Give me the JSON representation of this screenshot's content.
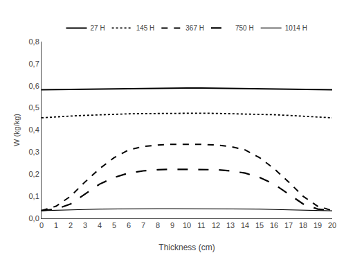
{
  "chart_data": {
    "type": "line",
    "xlabel": "Thickness (cm)",
    "ylabel": "W (kg/kg)",
    "x": [
      0,
      1,
      2,
      3,
      4,
      5,
      6,
      7,
      8,
      9,
      10,
      11,
      12,
      13,
      14,
      15,
      16,
      17,
      18,
      19,
      20
    ],
    "xlim": [
      0,
      20
    ],
    "xticks": [
      0,
      1,
      2,
      3,
      4,
      5,
      6,
      7,
      8,
      9,
      10,
      11,
      12,
      13,
      14,
      15,
      16,
      17,
      18,
      19,
      20
    ],
    "ylim": [
      0.0,
      0.8
    ],
    "yticks": [
      {
        "value": 0.0,
        "label": "0,0"
      },
      {
        "value": 0.1,
        "label": "0,1"
      },
      {
        "value": 0.2,
        "label": "0,2"
      },
      {
        "value": 0.3,
        "label": "0,3"
      },
      {
        "value": 0.4,
        "label": "0,4"
      },
      {
        "value": 0.5,
        "label": "0,5"
      },
      {
        "value": 0.6,
        "label": "0,6"
      },
      {
        "value": 0.7,
        "label": "0,7"
      },
      {
        "value": 0.8,
        "label": "0,8"
      }
    ],
    "grid": false,
    "legend": "upper center",
    "series": [
      {
        "name": "27 H",
        "color": "#000000",
        "line_style": "solid",
        "values": [
          0.582,
          0.583,
          0.584,
          0.585,
          0.586,
          0.587,
          0.588,
          0.589,
          0.589,
          0.59,
          0.59,
          0.59,
          0.589,
          0.589,
          0.588,
          0.587,
          0.586,
          0.585,
          0.584,
          0.583,
          0.582
        ]
      },
      {
        "name": "145 H",
        "color": "#000000",
        "line_style": "dotted",
        "values": [
          0.455,
          0.46,
          0.463,
          0.466,
          0.469,
          0.471,
          0.473,
          0.474,
          0.475,
          0.476,
          0.476,
          0.476,
          0.475,
          0.474,
          0.473,
          0.471,
          0.469,
          0.466,
          0.463,
          0.46,
          0.455
        ]
      },
      {
        "name": "367 H",
        "color": "#000000",
        "line_style": "dashed",
        "values": [
          0.035,
          0.055,
          0.1,
          0.165,
          0.225,
          0.275,
          0.31,
          0.325,
          0.332,
          0.335,
          0.335,
          0.335,
          0.332,
          0.325,
          0.31,
          0.275,
          0.225,
          0.165,
          0.1,
          0.055,
          0.035
        ]
      },
      {
        "name": "750 H",
        "color": "#000000",
        "line_style": "longdashed",
        "values": [
          0.035,
          0.042,
          0.065,
          0.11,
          0.155,
          0.185,
          0.205,
          0.215,
          0.22,
          0.222,
          0.222,
          0.222,
          0.22,
          0.215,
          0.205,
          0.185,
          0.155,
          0.11,
          0.065,
          0.042,
          0.035
        ]
      },
      {
        "name": "1014 H",
        "color": "#000000",
        "line_style": "solid",
        "values": [
          0.035,
          0.036,
          0.038,
          0.04,
          0.042,
          0.043,
          0.044,
          0.044,
          0.044,
          0.044,
          0.044,
          0.044,
          0.044,
          0.044,
          0.043,
          0.042,
          0.04,
          0.038,
          0.036,
          0.035,
          0.034
        ]
      }
    ]
  }
}
